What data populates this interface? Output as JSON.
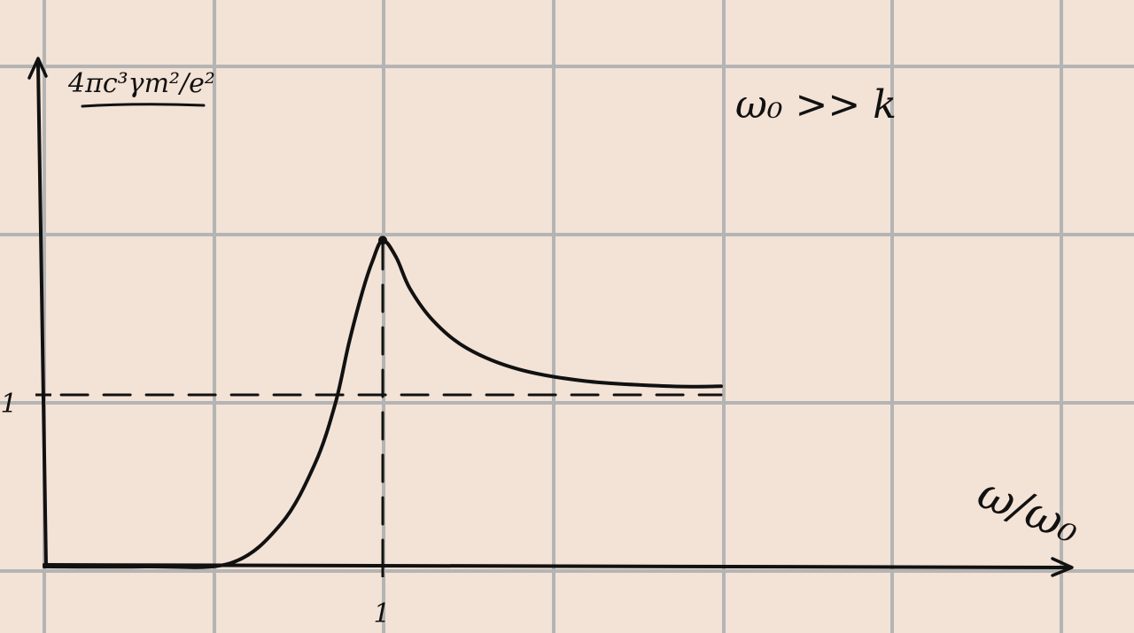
{
  "colors": {
    "paper": "#f3e2d6",
    "grid": "#b4b4b4",
    "ink": "#111111"
  },
  "chart_data": {
    "type": "line",
    "title": "",
    "xlabel": "ω/ω₀",
    "ylabel": "4πc³γm²/e²",
    "annotation": "ω₀ >> k",
    "x_ticks": [
      "1"
    ],
    "y_ticks": [
      "1"
    ],
    "xlim": [
      0,
      2.05
    ],
    "ylim": [
      0,
      1.95
    ],
    "grid": true,
    "series": [
      {
        "name": "",
        "style": "solid",
        "x": [
          0,
          0.3,
          0.55,
          0.7,
          0.8,
          0.86,
          0.9,
          0.94,
          0.97,
          1.0,
          1.04,
          1.08,
          1.15,
          1.25,
          1.4,
          1.6,
          1.85,
          2.0
        ],
        "y": [
          0,
          0,
          0.02,
          0.25,
          0.6,
          0.95,
          1.3,
          1.6,
          1.78,
          1.9,
          1.8,
          1.62,
          1.43,
          1.27,
          1.15,
          1.08,
          1.05,
          1.05
        ]
      },
      {
        "name": "",
        "style": "dashed",
        "x": [
          0.05,
          2.0
        ],
        "y": [
          1,
          1
        ]
      },
      {
        "name": "",
        "style": "dashed",
        "x": [
          1,
          1
        ],
        "y": [
          0,
          1.9
        ]
      }
    ],
    "peak": {
      "x": 1.0,
      "y": 1.9
    }
  }
}
